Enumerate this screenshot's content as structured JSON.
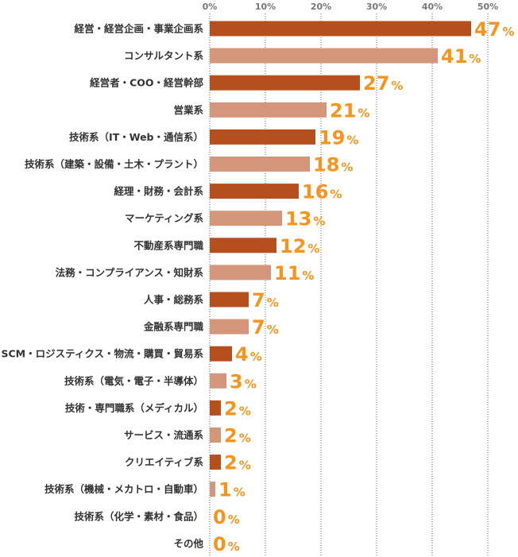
{
  "chart_data": {
    "type": "bar",
    "orientation": "horizontal",
    "title": "",
    "xlabel": "",
    "ylabel": "",
    "xlim": [
      0,
      50
    ],
    "x_ticks": [
      "0%",
      "10%",
      "20%",
      "30%",
      "40%",
      "50%"
    ],
    "tick_values": [
      0,
      10,
      20,
      30,
      40,
      50
    ],
    "grid": "vertical dotted",
    "value_suffix": "%",
    "colors": {
      "dark": "#B5501E",
      "light": "#D4967A",
      "value_label": "#F7941D"
    },
    "categories": [
      "経営・経営企画・事業企画系",
      "コンサルタント系",
      "経営者・COO・経営幹部",
      "営業系",
      "技術系（IT・Web・通信系）",
      "技術系（建築・設備・土木・プラント）",
      "経理・財務・会計系",
      "マーケティング系",
      "不動産系専門職",
      "法務・コンプライアンス・知財系",
      "人事・総務系",
      "金融系専門職",
      "SCM・ロジスティクス・物流・購買・貿易系",
      "技術系（電気・電子・半導体）",
      "技術・専門職系（メディカル）",
      "サービス・流通系",
      "クリエイティブ系",
      "技術系（機械・メカトロ・自動車）",
      "技術系（化学・素材・食品）",
      "その他"
    ],
    "values": [
      47,
      41,
      27,
      21,
      19,
      18,
      16,
      13,
      12,
      11,
      7,
      7,
      4,
      3,
      2,
      2,
      2,
      1,
      0,
      0
    ]
  }
}
